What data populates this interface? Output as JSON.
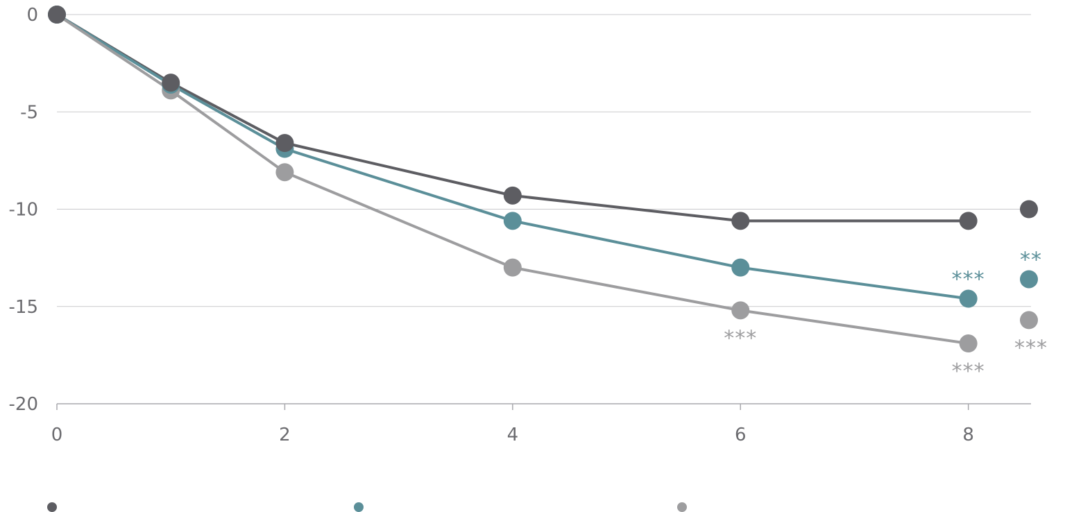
{
  "chart_data": {
    "type": "line",
    "x": [
      0,
      1,
      2,
      4,
      6,
      8
    ],
    "xticks": [
      0,
      2,
      4,
      6,
      8
    ],
    "xlim": [
      0,
      8.55
    ],
    "ylim": [
      -20,
      0
    ],
    "yticks": [
      0,
      -5,
      -10,
      -15,
      -20
    ],
    "grid": true,
    "legend": "bottom",
    "series": [
      {
        "color": "#5d5d62",
        "values": [
          0,
          -3.5,
          -6.6,
          -9.3,
          -10.6,
          -10.6
        ],
        "endpoint": -10.0,
        "endpoint_sig": "",
        "point_sig": [
          "",
          "",
          "",
          "",
          "",
          ""
        ]
      },
      {
        "color": "#5b8f99",
        "values": [
          0,
          -3.6,
          -6.9,
          -10.6,
          -13.0,
          -14.6
        ],
        "endpoint": -13.6,
        "endpoint_sig": "**",
        "point_sig": [
          "",
          "",
          "",
          "",
          "",
          "***"
        ]
      },
      {
        "color": "#9d9d9f",
        "values": [
          0,
          -3.9,
          -8.1,
          -13.0,
          -15.2,
          -16.9
        ],
        "endpoint": -15.7,
        "endpoint_sig": "***",
        "point_sig": [
          "",
          "",
          "",
          "",
          "***",
          "***"
        ]
      }
    ]
  }
}
